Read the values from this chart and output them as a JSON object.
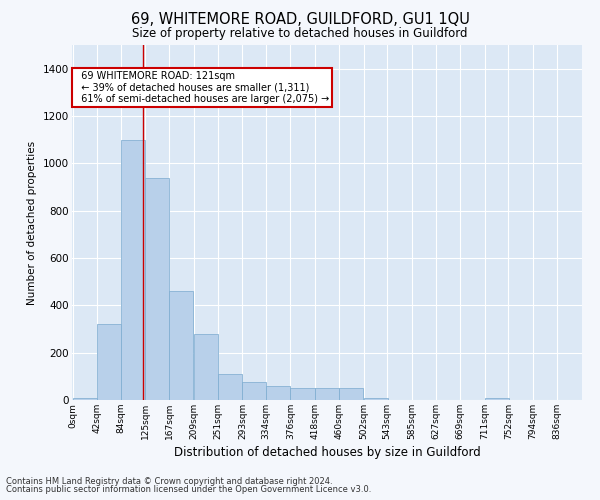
{
  "title": "69, WHITEMORE ROAD, GUILDFORD, GU1 1QU",
  "subtitle": "Size of property relative to detached houses in Guildford",
  "xlabel": "Distribution of detached houses by size in Guildford",
  "ylabel": "Number of detached properties",
  "bar_color": "#b8d0ea",
  "bar_edge_color": "#7aaacf",
  "background_color": "#dce8f5",
  "grid_color": "#ffffff",
  "annotation_box_color": "#cc0000",
  "property_line_color": "#cc0000",
  "property_value": 121,
  "annotation_text_line1": "69 WHITEMORE ROAD: 121sqm",
  "annotation_text_line2": "← 39% of detached houses are smaller (1,311)",
  "annotation_text_line3": "61% of semi-detached houses are larger (2,075) →",
  "categories": [
    "0sqm",
    "42sqm",
    "84sqm",
    "125sqm",
    "167sqm",
    "209sqm",
    "251sqm",
    "293sqm",
    "334sqm",
    "376sqm",
    "418sqm",
    "460sqm",
    "502sqm",
    "543sqm",
    "585sqm",
    "627sqm",
    "669sqm",
    "711sqm",
    "752sqm",
    "794sqm",
    "836sqm"
  ],
  "bin_edges": [
    0,
    42,
    84,
    125,
    167,
    209,
    251,
    293,
    334,
    376,
    418,
    460,
    502,
    543,
    585,
    627,
    669,
    711,
    752,
    794,
    836
  ],
  "values": [
    10,
    320,
    1100,
    940,
    460,
    280,
    110,
    75,
    60,
    50,
    50,
    50,
    10,
    0,
    0,
    0,
    0,
    10,
    0,
    0,
    0
  ],
  "ylim": [
    0,
    1500
  ],
  "yticks": [
    0,
    200,
    400,
    600,
    800,
    1000,
    1200,
    1400
  ],
  "fig_bg": "#f4f7fc",
  "footnote1": "Contains HM Land Registry data © Crown copyright and database right 2024.",
  "footnote2": "Contains public sector information licensed under the Open Government Licence v3.0."
}
